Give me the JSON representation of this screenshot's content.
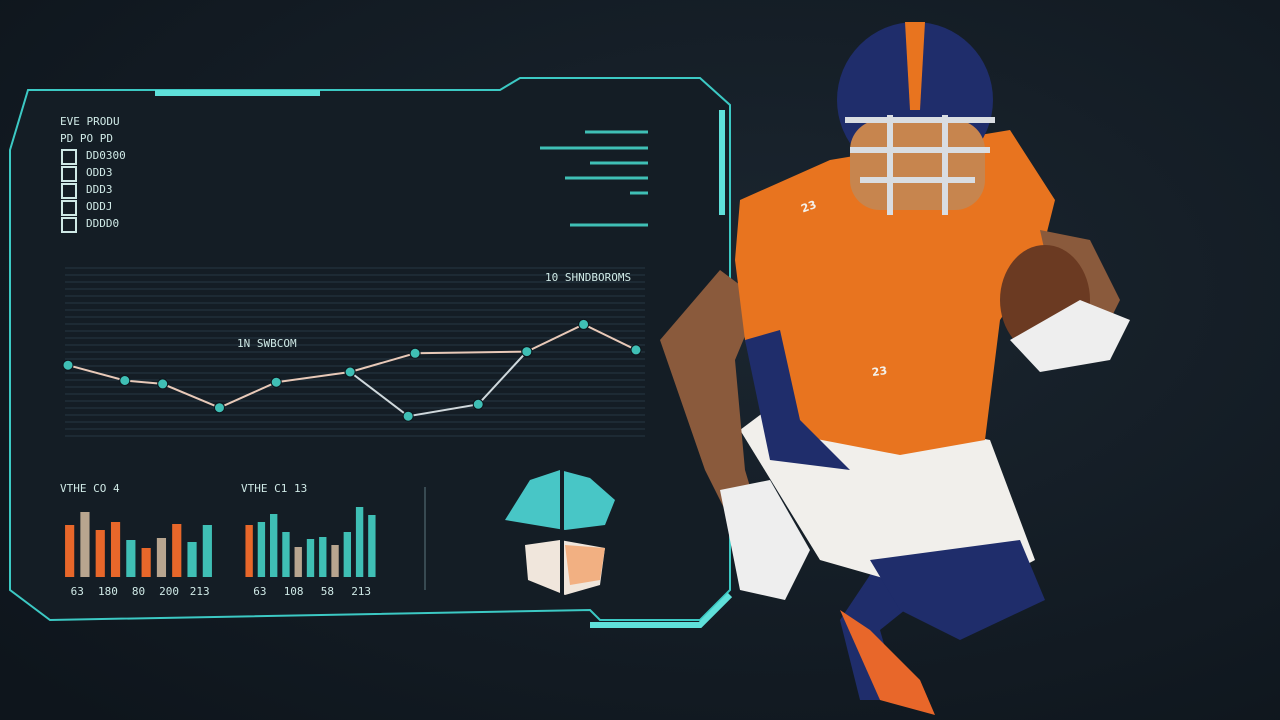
{
  "panel": {
    "legend": [
      "EVE PRODU",
      "PD PO PD",
      "DD0300",
      "ODD3",
      "DDD3",
      "ODDJ",
      "DDDD0"
    ],
    "line_chart": {
      "type": "line",
      "title": "10 SHNDBOROMS",
      "annotation": "1N SWBCOM",
      "xlim": [
        0,
        9
      ],
      "ylim": [
        0,
        100
      ],
      "series": [
        {
          "color": "#e8c9b8",
          "x": [
            0,
            0.9,
            1.5,
            2.4,
            3.3,
            4.47,
            5.5,
            7.27,
            8.17,
            9
          ],
          "values": [
            44,
            35,
            33,
            19,
            34,
            40,
            51,
            52,
            68,
            53
          ]
        },
        {
          "color": "#cfd8dc",
          "x": [
            4.47,
            5.39,
            6.5,
            7.27
          ],
          "values": [
            40,
            14,
            21,
            52
          ]
        }
      ]
    },
    "bar_charts": [
      {
        "type": "bar",
        "title": "VTHE CO 4",
        "labels": [
          "63",
          "180",
          "80",
          "200",
          "213"
        ],
        "ylim": [
          0,
          80
        ],
        "values": [
          52,
          65,
          47,
          55,
          37,
          29,
          39,
          53,
          35,
          52
        ],
        "colors": [
          "#e8672a",
          "#b8a58f",
          "#e8672a",
          "#e8672a",
          "#3fbfb5",
          "#e8672a",
          "#b8a58f",
          "#e8672a",
          "#3fbfb5",
          "#3fbfb5"
        ]
      },
      {
        "type": "bar",
        "title": "VTHE C1 13",
        "labels": [
          "63",
          "108",
          "58",
          "213"
        ],
        "ylim": [
          0,
          80
        ],
        "values": [
          52,
          55,
          63,
          45,
          30,
          38,
          40,
          32,
          45,
          70,
          62
        ],
        "colors": [
          "#e8672a",
          "#3fbfb5",
          "#3fbfb5",
          "#3fbfb5",
          "#b8a58f",
          "#3fbfb5",
          "#3fbfb5",
          "#b8a58f",
          "#3fbfb5",
          "#3fbfb5",
          "#3fbfb5"
        ]
      }
    ]
  },
  "player": {
    "jersey_number": "23"
  }
}
